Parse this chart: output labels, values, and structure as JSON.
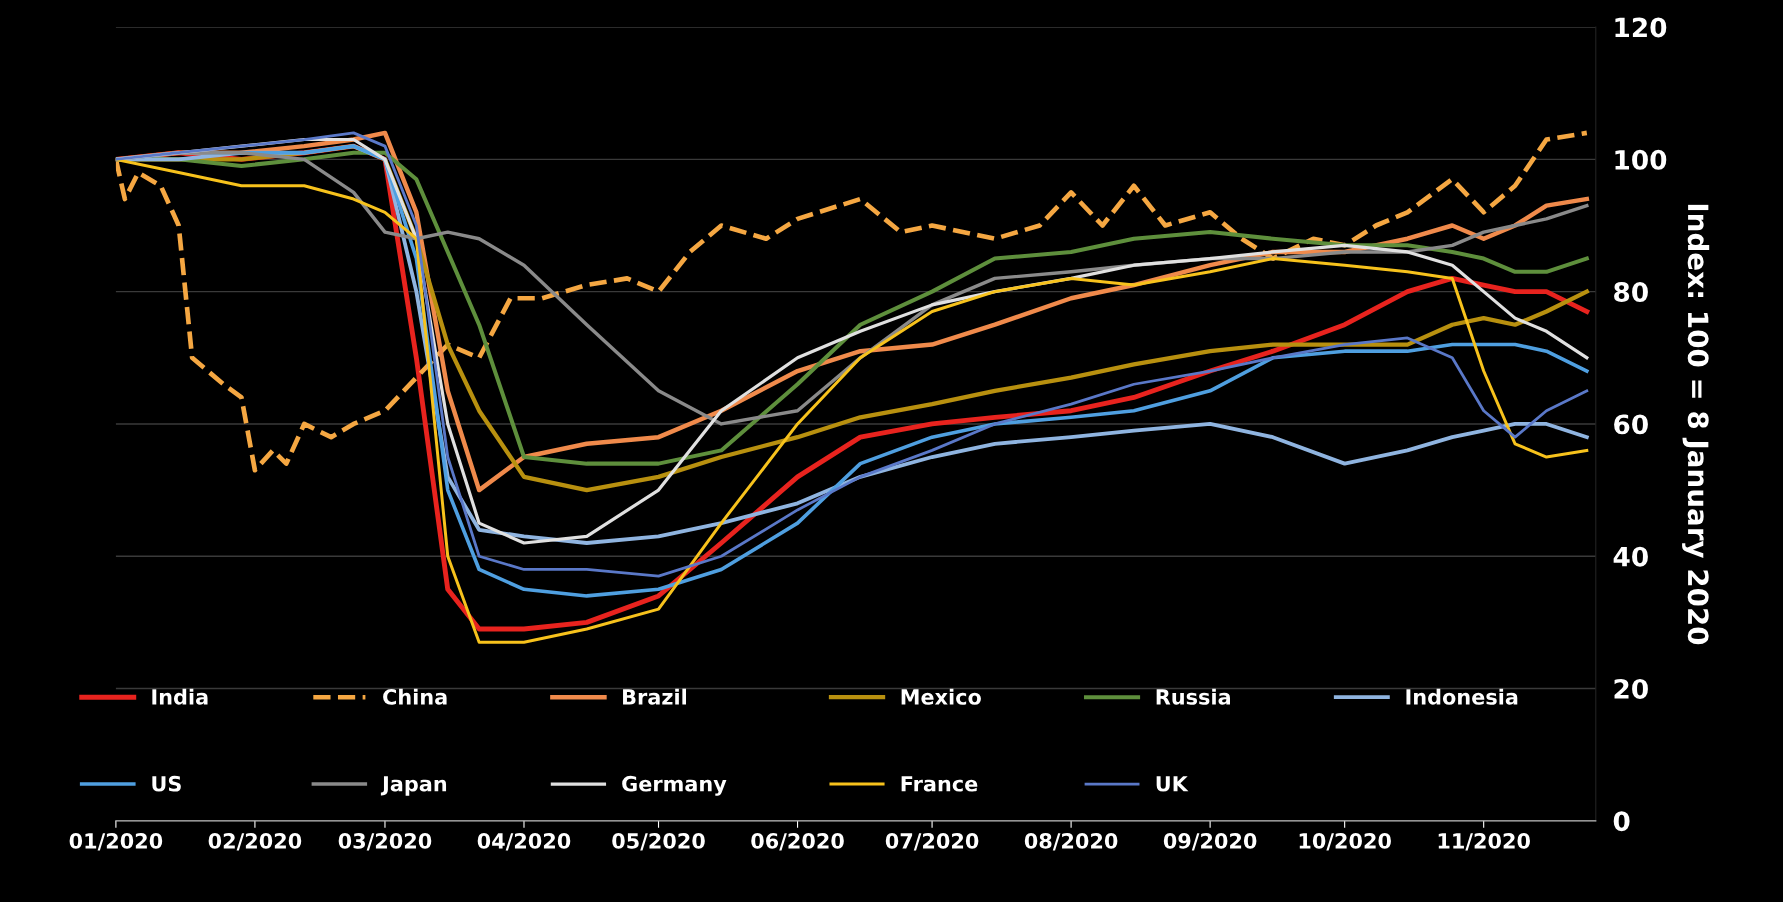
{
  "chart_data": {
    "type": "line",
    "ylabel": "Index: 100 = 8 January 2020",
    "x": [
      "2020-01-08",
      "2020-01-22",
      "2020-02-05",
      "2020-02-19",
      "2020-03-01",
      "2020-03-08",
      "2020-03-15",
      "2020-03-22",
      "2020-03-29",
      "2020-04-08",
      "2020-04-22",
      "2020-05-08",
      "2020-05-22",
      "2020-06-08",
      "2020-06-22",
      "2020-07-08",
      "2020-07-22",
      "2020-08-08",
      "2020-08-22",
      "2020-09-08",
      "2020-09-22",
      "2020-10-08",
      "2020-10-22",
      "2020-11-01",
      "2020-11-08",
      "2020-11-15",
      "2020-11-22",
      "2020-12-01"
    ],
    "series": [
      {
        "name": "India",
        "color": "#e8231e",
        "values": [
          100,
          101,
          100,
          101,
          102,
          100,
          70,
          35,
          29,
          29,
          30,
          34,
          42,
          52,
          58,
          60,
          61,
          62,
          64,
          68,
          71,
          75,
          80,
          82,
          81,
          80,
          80,
          77
        ]
      },
      {
        "name": "China",
        "color": "#f5a742",
        "line_style": "dashed",
        "x": [
          "2020-01-08",
          "2020-01-10",
          "2020-01-13",
          "2020-01-18",
          "2020-01-22",
          "2020-01-25",
          "2020-02-01",
          "2020-02-05",
          "2020-02-08",
          "2020-02-12",
          "2020-02-15",
          "2020-02-19",
          "2020-02-25",
          "2020-03-01",
          "2020-03-08",
          "2020-03-15",
          "2020-03-22",
          "2020-03-29",
          "2020-04-05",
          "2020-04-12",
          "2020-04-22",
          "2020-05-01",
          "2020-05-08",
          "2020-05-15",
          "2020-05-22",
          "2020-06-01",
          "2020-06-08",
          "2020-06-22",
          "2020-07-01",
          "2020-07-08",
          "2020-07-22",
          "2020-08-01",
          "2020-08-08",
          "2020-08-15",
          "2020-08-22",
          "2020-08-29",
          "2020-09-08",
          "2020-09-15",
          "2020-09-22",
          "2020-10-01",
          "2020-10-08",
          "2020-10-15",
          "2020-10-22",
          "2020-11-01",
          "2020-11-08",
          "2020-11-15",
          "2020-11-22",
          "2020-12-01"
        ],
        "values": [
          100,
          94,
          98,
          96,
          90,
          70,
          66,
          64,
          53,
          56,
          54,
          60,
          58,
          60,
          62,
          67,
          72,
          70,
          79,
          79,
          81,
          82,
          80,
          86,
          90,
          88,
          91,
          94,
          89,
          90,
          88,
          90,
          95,
          90,
          96,
          90,
          92,
          88,
          85,
          88,
          87,
          90,
          92,
          97,
          92,
          96,
          103,
          104
        ]
      },
      {
        "name": "Brazil",
        "color": "#f08a4b",
        "values": [
          100,
          101,
          101,
          102,
          103,
          104,
          92,
          65,
          50,
          55,
          57,
          58,
          62,
          68,
          71,
          72,
          75,
          79,
          81,
          84,
          86,
          86,
          88,
          90,
          88,
          90,
          93,
          94
        ]
      },
      {
        "name": "Mexico",
        "color": "#b8900f",
        "values": [
          100,
          100,
          100,
          101,
          102,
          100,
          88,
          72,
          62,
          52,
          50,
          52,
          55,
          58,
          61,
          63,
          65,
          67,
          69,
          71,
          72,
          72,
          72,
          75,
          76,
          75,
          77,
          80
        ]
      },
      {
        "name": "Russia",
        "color": "#5e8f3c",
        "values": [
          100,
          100,
          99,
          100,
          101,
          101,
          97,
          86,
          75,
          55,
          54,
          54,
          56,
          66,
          75,
          80,
          85,
          86,
          88,
          89,
          88,
          87,
          87,
          86,
          85,
          83,
          83,
          85
        ]
      },
      {
        "name": "Indonesia",
        "color": "#8fb4e0",
        "values": [
          100,
          100,
          101,
          101,
          102,
          100,
          80,
          52,
          44,
          43,
          42,
          43,
          45,
          48,
          52,
          55,
          57,
          58,
          59,
          60,
          58,
          54,
          56,
          58,
          59,
          60,
          60,
          58
        ]
      },
      {
        "name": "US",
        "color": "#4f9fe0",
        "values": [
          100,
          101,
          101,
          101,
          102,
          100,
          85,
          50,
          38,
          35,
          34,
          35,
          38,
          45,
          54,
          58,
          60,
          61,
          62,
          65,
          70,
          71,
          71,
          72,
          72,
          72,
          71,
          68
        ]
      },
      {
        "name": "Japan",
        "color": "#8a8a8a",
        "values": [
          100,
          101,
          101,
          100,
          95,
          89,
          88,
          89,
          88,
          84,
          75,
          65,
          60,
          62,
          70,
          78,
          82,
          83,
          84,
          85,
          85,
          86,
          86,
          87,
          89,
          90,
          91,
          93
        ]
      },
      {
        "name": "Germany",
        "color": "#e0e0e0",
        "values": [
          100,
          101,
          102,
          103,
          103,
          100,
          88,
          60,
          45,
          42,
          43,
          50,
          62,
          70,
          74,
          78,
          80,
          82,
          84,
          85,
          86,
          87,
          86,
          84,
          80,
          76,
          74,
          70
        ]
      },
      {
        "name": "France",
        "color": "#f7c21c",
        "values": [
          100,
          98,
          96,
          96,
          94,
          92,
          88,
          40,
          27,
          27,
          29,
          32,
          45,
          60,
          70,
          77,
          80,
          82,
          81,
          83,
          85,
          84,
          83,
          82,
          68,
          57,
          55,
          56
        ]
      },
      {
        "name": "UK",
        "color": "#5a78c8",
        "values": [
          100,
          101,
          102,
          103,
          104,
          102,
          90,
          55,
          40,
          38,
          38,
          37,
          40,
          47,
          52,
          56,
          60,
          63,
          66,
          68,
          70,
          72,
          73,
          70,
          62,
          58,
          62,
          65
        ]
      }
    ],
    "xlim": [
      "2020-01-08",
      "2020-12-03"
    ],
    "xticks": [
      {
        "value": "2020-01-08",
        "label": "01/2020"
      },
      {
        "value": "2020-02-08",
        "label": "02/2020"
      },
      {
        "value": "2020-03-08",
        "label": "03/2020"
      },
      {
        "value": "2020-04-08",
        "label": "04/2020"
      },
      {
        "value": "2020-05-08",
        "label": "05/2020"
      },
      {
        "value": "2020-06-08",
        "label": "06/2020"
      },
      {
        "value": "2020-07-08",
        "label": "07/2020"
      },
      {
        "value": "2020-08-08",
        "label": "08/2020"
      },
      {
        "value": "2020-09-08",
        "label": "09/2020"
      },
      {
        "value": "2020-10-08",
        "label": "10/2020"
      },
      {
        "value": "2020-11-08",
        "label": "11/2020"
      }
    ],
    "ylim": [
      0,
      120
    ],
    "yticks": [
      0,
      20,
      40,
      60,
      80,
      100,
      120
    ],
    "grid": "y",
    "legend": "bottom left"
  }
}
